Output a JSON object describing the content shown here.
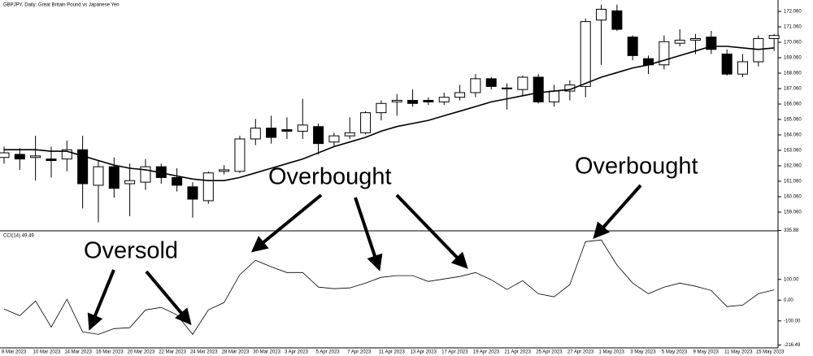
{
  "chart_data": [
    {
      "type": "candlestick",
      "title": "GBPJPY, Daily:  Great Britain Pound vs Japanese Yen",
      "categories": [
        "8 Mar 2023",
        null,
        "10 Mar 2023",
        null,
        "14 Mar 2023",
        null,
        "16 Mar 2023",
        null,
        "20 Mar 2023",
        null,
        "22 Mar 2023",
        null,
        "24 Mar 2023",
        null,
        "28 Mar 2023",
        null,
        "30 Mar 2023",
        null,
        "3 Apr 2023",
        null,
        "5 Apr 2023",
        null,
        "7 Apr 2023",
        null,
        "11 Apr 2023",
        null,
        "13 Apr 2023",
        null,
        "17 Apr 2023",
        null,
        "19 Apr 2023",
        null,
        "21 Apr 2023",
        null,
        "25 Apr 2023",
        null,
        "27 Apr 2023",
        null,
        "1 May 2023",
        null,
        "3 May 2023",
        null,
        "5 May 2023",
        null,
        "9 May 2023",
        null,
        "11 May 2023",
        null,
        "15 May 2023",
        null
      ],
      "open": [
        162.6,
        162.8,
        162.6,
        162.5,
        162.5,
        163.1,
        160.8,
        162.0,
        160.9,
        161.0,
        162.0,
        161.3,
        160.7,
        159.8,
        161.7,
        161.7,
        163.8,
        164.5,
        164.4,
        164.3,
        164.6,
        163.6,
        164.0,
        164.2,
        165.5,
        166.2,
        166.3,
        166.3,
        166.2,
        166.5,
        166.8,
        167.7,
        167.1,
        167.0,
        167.8,
        166.2,
        166.9,
        167.2,
        171.5,
        172.1,
        170.4,
        169.0,
        168.6,
        170.0,
        170.2,
        170.4,
        169.3,
        168.0,
        168.8,
        170.3
      ],
      "high": [
        163.3,
        163.2,
        164.0,
        163.3,
        163.7,
        164.0,
        162.4,
        162.6,
        162.2,
        162.5,
        162.2,
        161.9,
        161.0,
        161.7,
        162.1,
        164.0,
        165.1,
        165.3,
        165.2,
        166.4,
        164.8,
        164.2,
        165.2,
        165.6,
        166.3,
        166.7,
        167.0,
        166.5,
        166.8,
        167.3,
        168.0,
        167.8,
        167.4,
        167.9,
        168.0,
        167.3,
        167.6,
        171.6,
        172.5,
        172.5,
        170.5,
        169.2,
        170.5,
        170.9,
        170.6,
        170.8,
        169.6,
        169.3,
        170.5,
        170.6
      ],
      "low": [
        162.2,
        161.8,
        161.1,
        161.3,
        161.7,
        159.3,
        158.4,
        160.0,
        158.8,
        160.5,
        160.9,
        160.4,
        158.7,
        159.6,
        161.5,
        161.6,
        163.4,
        163.5,
        163.8,
        163.8,
        162.8,
        163.3,
        163.8,
        164.1,
        165.0,
        165.3,
        165.9,
        166.0,
        166.0,
        166.3,
        166.5,
        167.0,
        165.7,
        166.6,
        166.1,
        165.9,
        166.3,
        166.5,
        168.6,
        170.8,
        168.9,
        168.0,
        168.3,
        169.8,
        169.3,
        169.3,
        167.9,
        167.8,
        168.5,
        169.5
      ],
      "close": [
        162.9,
        162.5,
        162.7,
        162.4,
        163.1,
        160.9,
        162.0,
        160.6,
        161.1,
        162.0,
        161.3,
        160.8,
        159.9,
        161.6,
        161.8,
        163.8,
        164.5,
        163.9,
        164.3,
        164.7,
        163.5,
        164.0,
        164.2,
        165.5,
        166.1,
        166.3,
        166.1,
        166.2,
        166.5,
        166.8,
        167.7,
        167.2,
        167.1,
        167.8,
        166.2,
        166.9,
        167.3,
        171.4,
        172.2,
        170.9,
        169.2,
        168.6,
        170.1,
        170.2,
        170.3,
        169.6,
        168.0,
        168.8,
        170.3,
        170.5
      ],
      "ma": [
        163.1,
        163.1,
        163.1,
        163.0,
        163.0,
        162.7,
        162.4,
        162.1,
        161.9,
        161.8,
        161.6,
        161.4,
        161.2,
        161.1,
        161.1,
        161.3,
        161.6,
        161.9,
        162.2,
        162.5,
        162.9,
        163.3,
        163.6,
        163.9,
        164.3,
        164.6,
        164.8,
        165.0,
        165.3,
        165.6,
        165.9,
        166.2,
        166.4,
        166.6,
        166.8,
        166.9,
        167.0,
        167.4,
        167.8,
        168.1,
        168.4,
        168.6,
        168.9,
        169.2,
        169.5,
        169.8,
        169.8,
        169.7,
        169.6,
        169.7
      ],
      "up_color": "#ffffff",
      "down_color": "#000000",
      "ma_color": "#000000",
      "ylim": [
        157.9,
        172.8
      ],
      "yticks": [
        {
          "value": 172.06,
          "label": "172.060"
        },
        {
          "value": 171.06,
          "label": "171.060"
        },
        {
          "value": 170.06,
          "label": "170.060"
        },
        {
          "value": 169.06,
          "label": "169.060"
        },
        {
          "value": 168.06,
          "label": "168.060"
        },
        {
          "value": 167.06,
          "label": "167.060"
        },
        {
          "value": 166.06,
          "label": "166.060"
        },
        {
          "value": 165.06,
          "label": "165.060"
        },
        {
          "value": 164.06,
          "label": "164.060"
        },
        {
          "value": 163.06,
          "label": "163.060"
        },
        {
          "value": 162.06,
          "label": "162.060"
        },
        {
          "value": 161.06,
          "label": "161.060"
        },
        {
          "value": 160.06,
          "label": "160.060"
        },
        {
          "value": 159.06,
          "label": "159.060"
        }
      ],
      "grid": false
    },
    {
      "type": "line",
      "title": "CCI(14) 49.49",
      "values": [
        -43,
        -75,
        -4,
        -130,
        4,
        -153,
        -165,
        -137,
        -133,
        -47,
        -35,
        -71,
        -165,
        -47,
        -12,
        122,
        192,
        161,
        133,
        133,
        63,
        55,
        59,
        82,
        110,
        118,
        118,
        90,
        102,
        114,
        133,
        98,
        51,
        94,
        31,
        16,
        75,
        282,
        290,
        169,
        82,
        31,
        63,
        82,
        67,
        47,
        -31,
        -24,
        31,
        49.49
      ],
      "color": "#000000",
      "ylim": [
        -230,
        330
      ],
      "yticks": [
        335.88,
        {
          "value": 100,
          "label": "100.00"
        },
        {
          "value": 0,
          "label": "0.00"
        },
        {
          "value": -100,
          "label": "-100.00"
        },
        -216.49
      ],
      "annotations": [
        "Overbought",
        "Overbought",
        "Oversold"
      ],
      "grid": false
    }
  ]
}
